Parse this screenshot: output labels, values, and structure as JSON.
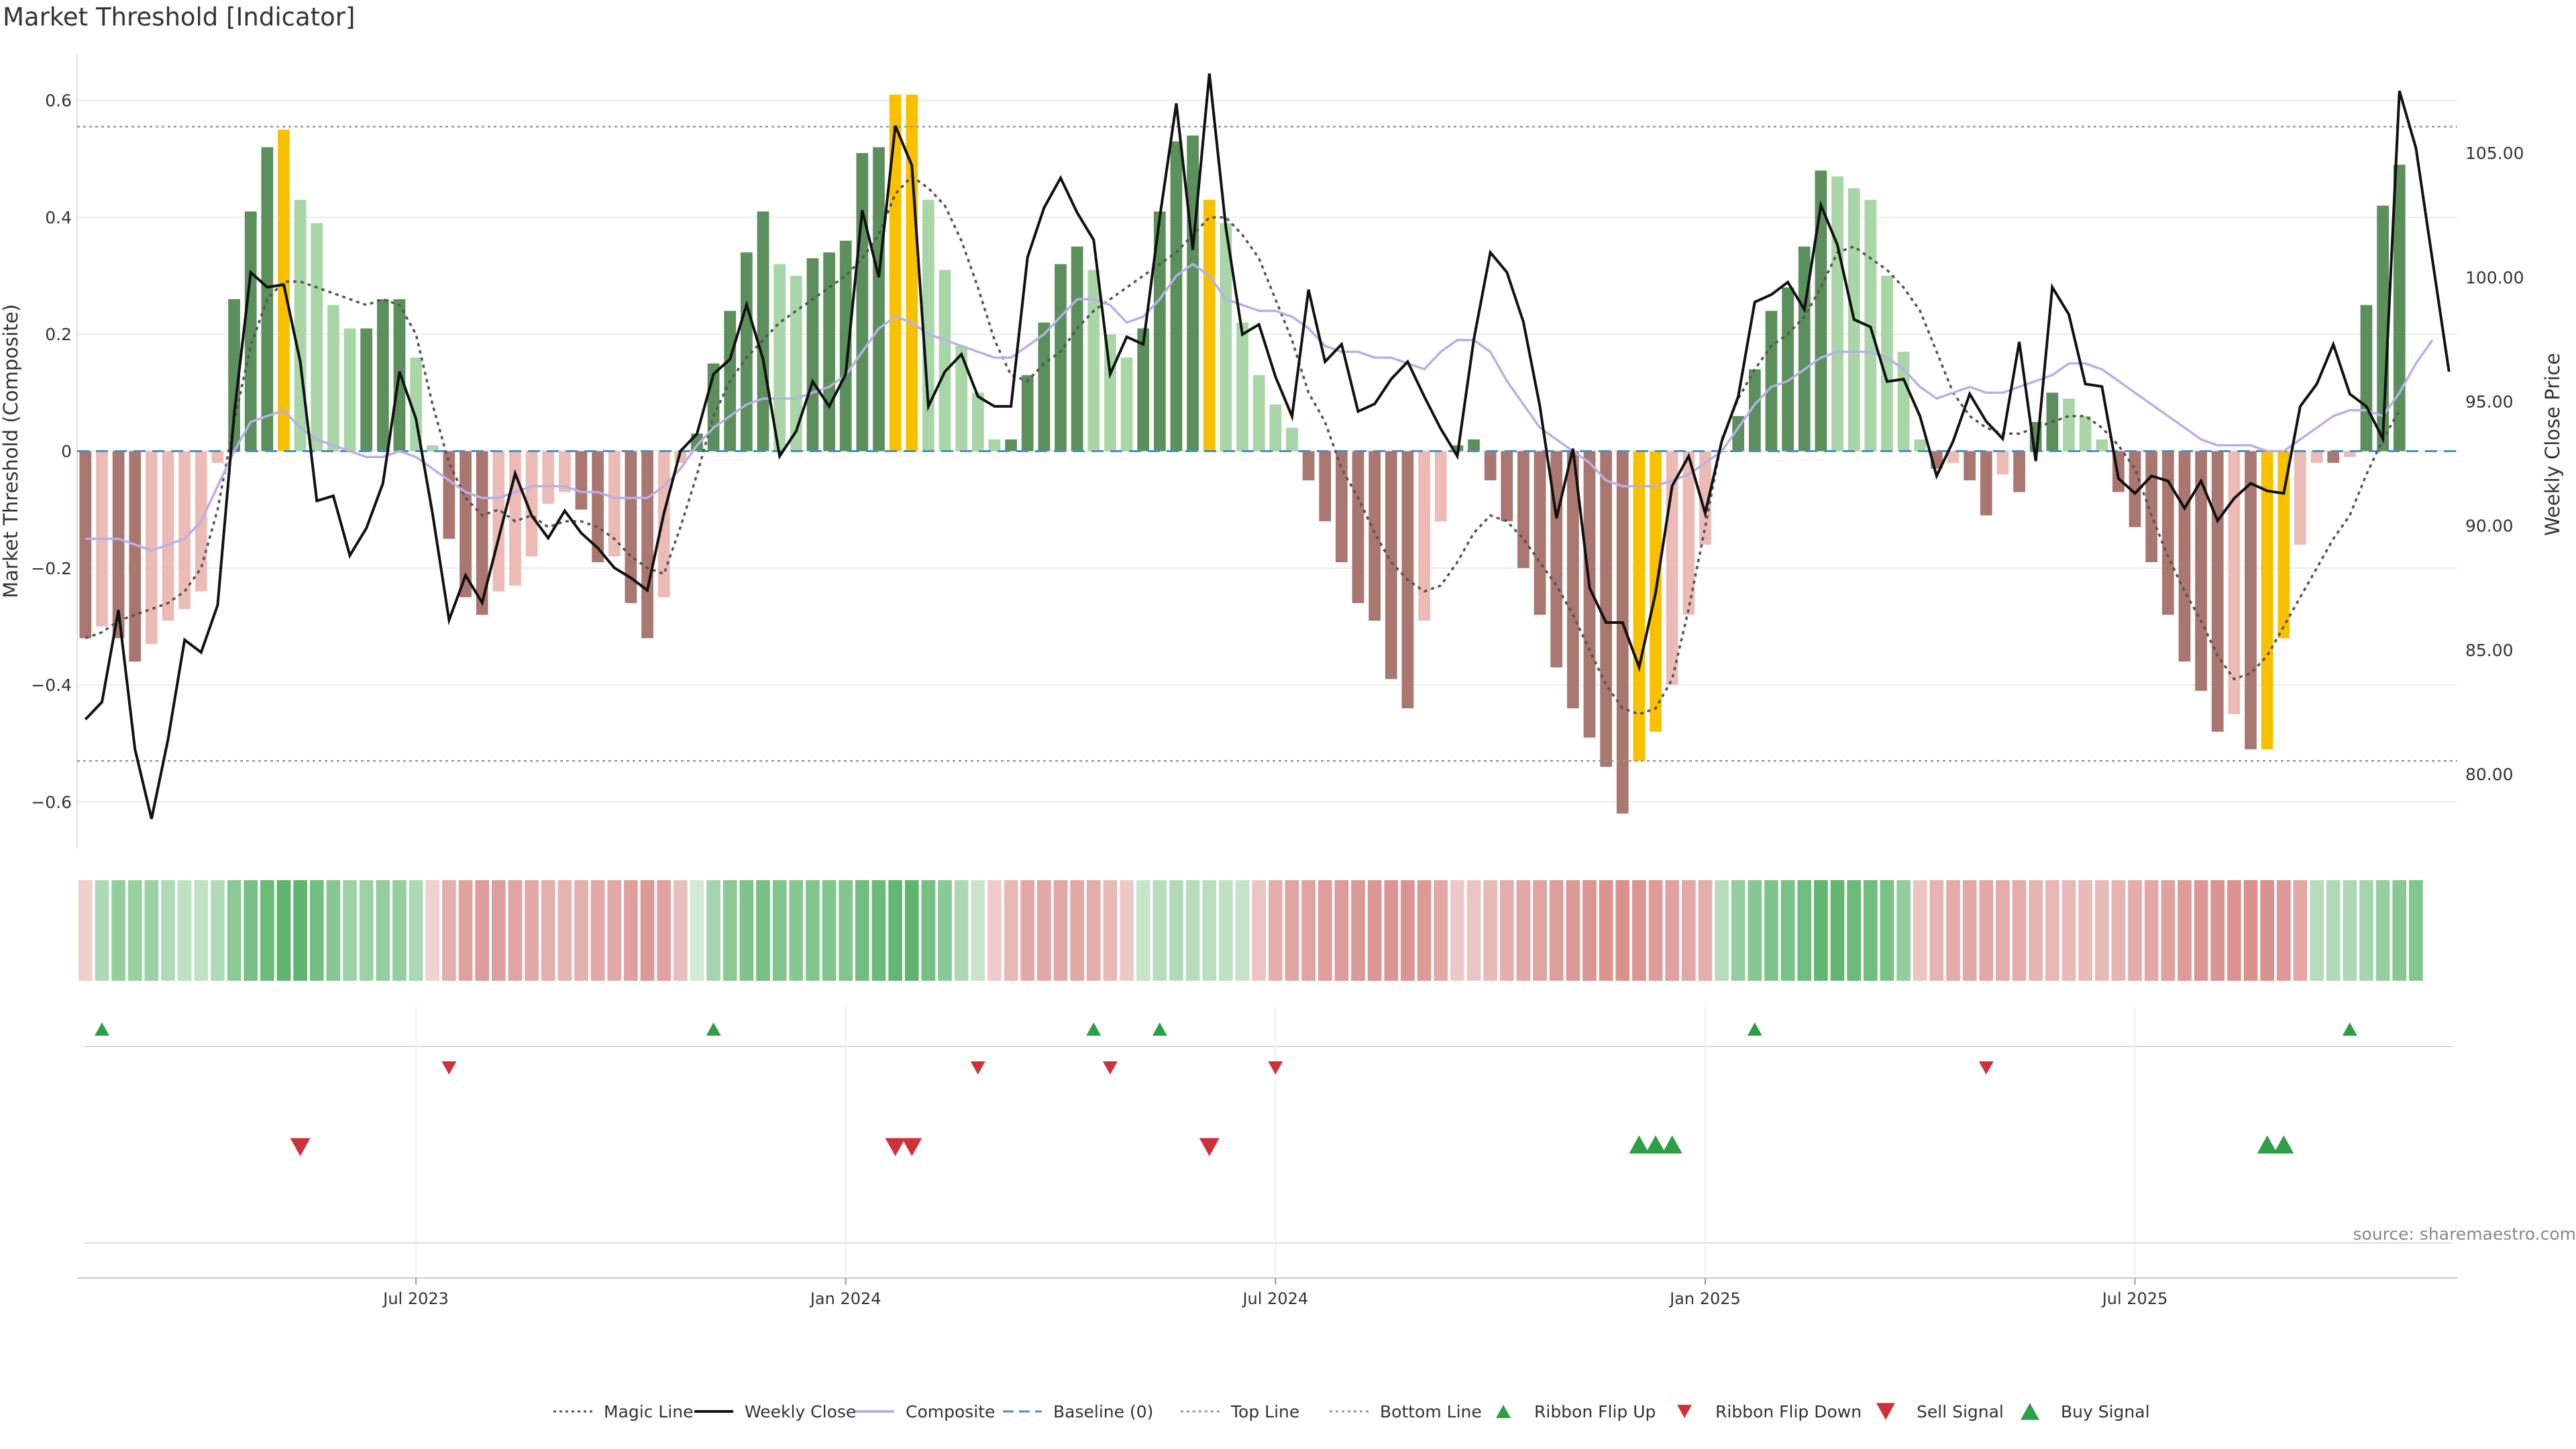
{
  "title": "Market Threshold [Indicator]",
  "source": "source: sharemaestro.com",
  "colors": {
    "bar_up_strong": "#5b8f5b",
    "bar_up_light": "#a9d6a6",
    "bar_down_strong": "#a97670",
    "bar_down_light": "#ecbbb6",
    "bar_extreme": "#f8c100",
    "close": "#111111",
    "composite": "#b8b0e6",
    "magic": "#555555",
    "baseline": "#4a90c2",
    "threshold": "#999999",
    "signal_up": "#2e9e47",
    "signal_down": "#d0303a"
  },
  "chart_data": {
    "type": "bar+line",
    "ylabel_left": "Market Threshold (Composite)",
    "ylabel_right": "Weekly Close Price",
    "left_ticks": [
      "0.6",
      "0.4",
      "0.2",
      "0",
      "−0.2",
      "−0.4",
      "−0.6"
    ],
    "right_ticks": [
      "105.00",
      "100.00",
      "95.00",
      "90.00",
      "85.00",
      "80.00"
    ],
    "ylim_left": [
      -0.68,
      0.68
    ],
    "ylim_right": [
      77.0,
      109.0
    ],
    "top_line": 0.555,
    "bottom_line": -0.53,
    "x_ticks": [
      "Jul 2023",
      "Jan 2024",
      "Jul 2024",
      "Jan 2025",
      "Jul 2025"
    ],
    "x_tick_weeks": [
      20,
      46,
      72,
      98,
      124
    ],
    "weeks": 144,
    "composite_bars": [
      -0.32,
      -0.3,
      -0.32,
      -0.36,
      -0.33,
      -0.29,
      -0.27,
      -0.24,
      -0.02,
      0.26,
      0.41,
      0.52,
      0.55,
      0.43,
      0.39,
      0.25,
      0.21,
      0.21,
      0.26,
      0.26,
      0.16,
      0.01,
      -0.15,
      -0.25,
      -0.28,
      -0.24,
      -0.23,
      -0.18,
      -0.09,
      -0.07,
      -0.1,
      -0.19,
      -0.18,
      -0.26,
      -0.32,
      -0.25,
      -0.02,
      0.03,
      0.15,
      0.24,
      0.34,
      0.41,
      0.32,
      0.3,
      0.33,
      0.34,
      0.36,
      0.51,
      0.52,
      0.61,
      0.61,
      0.43,
      0.31,
      0.18,
      0.1,
      0.02,
      0.02,
      0.13,
      0.22,
      0.32,
      0.35,
      0.31,
      0.2,
      0.16,
      0.21,
      0.41,
      0.53,
      0.54,
      0.43,
      0.39,
      0.22,
      0.13,
      0.08,
      0.04,
      -0.05,
      -0.12,
      -0.19,
      -0.26,
      -0.29,
      -0.39,
      -0.44,
      -0.29,
      -0.12,
      0.01,
      0.02,
      -0.05,
      -0.12,
      -0.2,
      -0.28,
      -0.37,
      -0.44,
      -0.49,
      -0.54,
      -0.62,
      -0.53,
      -0.48,
      -0.4,
      -0.28,
      -0.16,
      0.0,
      0.06,
      0.14,
      0.24,
      0.28,
      0.35,
      0.48,
      0.47,
      0.45,
      0.43,
      0.3,
      0.17,
      0.02,
      -0.03,
      -0.02,
      -0.05,
      -0.11,
      -0.04,
      -0.07,
      0.05,
      0.1,
      0.09,
      0.06,
      0.02,
      -0.07,
      -0.13,
      -0.19,
      -0.28,
      -0.36,
      -0.41,
      -0.48,
      -0.45,
      -0.51,
      -0.51,
      -0.32,
      -0.16,
      -0.02,
      -0.02,
      -0.01,
      0.25,
      0.42,
      0.49
    ],
    "extreme_bars": [
      12,
      49,
      50,
      68,
      94,
      95,
      132,
      133
    ],
    "weekly_close": [
      82.2,
      82.9,
      86.6,
      81.0,
      78.2,
      81.4,
      85.4,
      84.9,
      86.8,
      94.5,
      100.2,
      99.6,
      99.7,
      96.6,
      91.0,
      91.2,
      88.8,
      89.9,
      91.7,
      96.2,
      94.3,
      90.5,
      86.2,
      88.0,
      86.9,
      89.5,
      92.1,
      90.4,
      89.5,
      90.6,
      89.7,
      89.1,
      88.3,
      87.9,
      87.4,
      90.5,
      93.0,
      93.7,
      96.1,
      96.7,
      98.9,
      96.7,
      92.8,
      93.8,
      95.8,
      94.8,
      96.1,
      102.7,
      100.0,
      106.1,
      104.5,
      94.8,
      96.2,
      96.9,
      95.2,
      94.8,
      94.8,
      100.8,
      102.8,
      104.0,
      102.6,
      101.5,
      96.1,
      97.6,
      97.3,
      102.4,
      107.0,
      101.1,
      108.2,
      102.0,
      97.7,
      98.1,
      96.0,
      94.4,
      99.5,
      96.6,
      97.3,
      94.6,
      94.9,
      95.9,
      96.6,
      95.2,
      93.9,
      92.8,
      97.5,
      101.0,
      100.2,
      98.2,
      94.8,
      90.3,
      93.1,
      87.5,
      86.1,
      86.1,
      84.3,
      87.3,
      91.6,
      92.8,
      90.5,
      93.4,
      95.2,
      99.0,
      99.3,
      99.8,
      98.7,
      102.9,
      101.3,
      98.3,
      98.0,
      95.8,
      95.9,
      94.4,
      92.0,
      93.4,
      95.3,
      94.2,
      93.5,
      97.4,
      92.6,
      99.6,
      98.5,
      95.7,
      95.6,
      91.9,
      91.3,
      92.0,
      91.8,
      90.7,
      91.8,
      90.2,
      91.1,
      91.7,
      91.4,
      91.3,
      94.8,
      95.7,
      97.3,
      95.3,
      94.8,
      93.5,
      107.5,
      105.2,
      100.7,
      96.2
    ],
    "composite_line": [
      -0.15,
      -0.15,
      -0.15,
      -0.16,
      -0.17,
      -0.16,
      -0.15,
      -0.12,
      -0.06,
      0.0,
      0.05,
      0.06,
      0.07,
      0.04,
      0.02,
      0.01,
      -0.0,
      -0.01,
      -0.01,
      -0.0,
      -0.01,
      -0.03,
      -0.05,
      -0.07,
      -0.08,
      -0.08,
      -0.07,
      -0.06,
      -0.06,
      -0.06,
      -0.07,
      -0.07,
      -0.08,
      -0.08,
      -0.08,
      -0.06,
      -0.03,
      0.01,
      0.04,
      0.06,
      0.08,
      0.09,
      0.09,
      0.09,
      0.1,
      0.11,
      0.13,
      0.17,
      0.21,
      0.23,
      0.22,
      0.2,
      0.19,
      0.18,
      0.17,
      0.16,
      0.16,
      0.18,
      0.2,
      0.23,
      0.26,
      0.26,
      0.25,
      0.22,
      0.23,
      0.26,
      0.3,
      0.32,
      0.3,
      0.26,
      0.25,
      0.24,
      0.24,
      0.23,
      0.21,
      0.18,
      0.17,
      0.17,
      0.16,
      0.16,
      0.15,
      0.14,
      0.17,
      0.19,
      0.19,
      0.17,
      0.12,
      0.08,
      0.04,
      0.02,
      0.0,
      -0.02,
      -0.05,
      -0.06,
      -0.06,
      -0.06,
      -0.05,
      -0.04,
      -0.02,
      0.0,
      0.04,
      0.08,
      0.11,
      0.12,
      0.14,
      0.16,
      0.17,
      0.17,
      0.17,
      0.16,
      0.14,
      0.11,
      0.09,
      0.1,
      0.11,
      0.1,
      0.1,
      0.11,
      0.12,
      0.13,
      0.15,
      0.15,
      0.14,
      0.12,
      0.1,
      0.08,
      0.06,
      0.04,
      0.02,
      0.01,
      0.01,
      0.01,
      -0.0,
      -0.0,
      0.02,
      0.04,
      0.06,
      0.07,
      0.07,
      0.06,
      0.1,
      0.15,
      0.19
    ],
    "magic_line": [
      -0.32,
      -0.31,
      -0.29,
      -0.28,
      -0.27,
      -0.26,
      -0.24,
      -0.2,
      -0.1,
      0.05,
      0.18,
      0.26,
      0.29,
      0.29,
      0.28,
      0.27,
      0.26,
      0.25,
      0.26,
      0.25,
      0.2,
      0.08,
      -0.02,
      -0.08,
      -0.11,
      -0.1,
      -0.12,
      -0.11,
      -0.13,
      -0.12,
      -0.12,
      -0.13,
      -0.15,
      -0.18,
      -0.2,
      -0.21,
      -0.13,
      -0.04,
      0.06,
      0.12,
      0.16,
      0.19,
      0.22,
      0.24,
      0.26,
      0.28,
      0.3,
      0.33,
      0.37,
      0.44,
      0.47,
      0.45,
      0.42,
      0.36,
      0.28,
      0.19,
      0.13,
      0.12,
      0.15,
      0.17,
      0.21,
      0.24,
      0.26,
      0.28,
      0.3,
      0.32,
      0.34,
      0.37,
      0.4,
      0.4,
      0.37,
      0.33,
      0.26,
      0.19,
      0.1,
      0.05,
      -0.03,
      -0.08,
      -0.14,
      -0.19,
      -0.22,
      -0.24,
      -0.23,
      -0.19,
      -0.14,
      -0.11,
      -0.12,
      -0.15,
      -0.19,
      -0.23,
      -0.28,
      -0.34,
      -0.4,
      -0.44,
      -0.45,
      -0.44,
      -0.39,
      -0.27,
      -0.13,
      0.02,
      0.09,
      0.14,
      0.18,
      0.2,
      0.23,
      0.28,
      0.34,
      0.35,
      0.33,
      0.31,
      0.28,
      0.24,
      0.17,
      0.1,
      0.06,
      0.04,
      0.03,
      0.03,
      0.04,
      0.05,
      0.06,
      0.06,
      0.04,
      0.01,
      -0.03,
      -0.11,
      -0.18,
      -0.24,
      -0.29,
      -0.35,
      -0.39,
      -0.38,
      -0.35,
      -0.3,
      -0.25,
      -0.2,
      -0.15,
      -0.11,
      -0.04,
      0.02,
      0.07
    ],
    "heat_strip": [
      -0.16,
      0.35,
      0.5,
      0.48,
      0.45,
      0.34,
      0.26,
      0.25,
      0.33,
      0.55,
      0.66,
      0.74,
      0.8,
      0.8,
      0.69,
      0.57,
      0.45,
      0.45,
      0.5,
      0.49,
      0.36,
      -0.14,
      -0.43,
      -0.55,
      -0.6,
      -0.57,
      -0.54,
      -0.49,
      -0.43,
      -0.4,
      -0.43,
      -0.5,
      -0.5,
      -0.57,
      -0.62,
      -0.55,
      -0.3,
      0.14,
      0.4,
      0.55,
      0.62,
      0.66,
      0.6,
      0.57,
      0.6,
      0.6,
      0.6,
      0.7,
      0.73,
      0.78,
      0.8,
      0.67,
      0.55,
      0.36,
      0.2,
      -0.18,
      -0.36,
      -0.48,
      -0.5,
      -0.5,
      -0.48,
      -0.45,
      -0.35,
      -0.2,
      0.2,
      0.3,
      0.33,
      0.3,
      0.28,
      0.25,
      0.22,
      -0.24,
      -0.44,
      -0.52,
      -0.54,
      -0.58,
      -0.6,
      -0.62,
      -0.64,
      -0.66,
      -0.67,
      -0.62,
      -0.5,
      -0.2,
      -0.24,
      -0.34,
      -0.44,
      -0.5,
      -0.54,
      -0.58,
      -0.62,
      -0.65,
      -0.68,
      -0.7,
      -0.66,
      -0.6,
      -0.55,
      -0.5,
      -0.44,
      0.3,
      0.5,
      0.57,
      0.62,
      0.65,
      0.7,
      0.78,
      0.78,
      0.74,
      0.7,
      0.64,
      0.5,
      -0.24,
      -0.4,
      -0.46,
      -0.48,
      -0.5,
      -0.46,
      -0.46,
      -0.38,
      -0.36,
      -0.34,
      -0.33,
      -0.34,
      -0.38,
      -0.45,
      -0.5,
      -0.55,
      -0.6,
      -0.64,
      -0.68,
      -0.68,
      -0.7,
      -0.7,
      -0.63,
      -0.5,
      0.3,
      0.34,
      0.36,
      0.4,
      0.48,
      0.56,
      0.6
    ],
    "ribbon_flip_up": [
      1,
      38,
      61,
      65,
      101,
      137
    ],
    "ribbon_flip_down": [
      22,
      54,
      62,
      72,
      115
    ],
    "sell_signal": [
      13,
      49,
      50,
      68
    ],
    "buy_signal": [
      94,
      95,
      96,
      132,
      133
    ],
    "legend": [
      {
        "label": "Magic Line",
        "kind": "dotted",
        "color": "#555555"
      },
      {
        "label": "Weekly Close",
        "kind": "solid",
        "color": "#111111"
      },
      {
        "label": "Composite",
        "kind": "solid",
        "color": "#b8b0e6"
      },
      {
        "label": "Baseline (0)",
        "kind": "dashed",
        "color": "#4a90c2"
      },
      {
        "label": "Top Line",
        "kind": "dotted",
        "color": "#999999"
      },
      {
        "label": "Bottom Line",
        "kind": "dotted",
        "color": "#999999"
      },
      {
        "label": "Ribbon Flip Up",
        "kind": "tri-up-small",
        "color": "#2e9e47"
      },
      {
        "label": "Ribbon Flip Down",
        "kind": "tri-down-small",
        "color": "#d0303a"
      },
      {
        "label": "Sell Signal",
        "kind": "tri-down",
        "color": "#d0303a"
      },
      {
        "label": "Buy Signal",
        "kind": "tri-up",
        "color": "#2e9e47"
      }
    ]
  }
}
